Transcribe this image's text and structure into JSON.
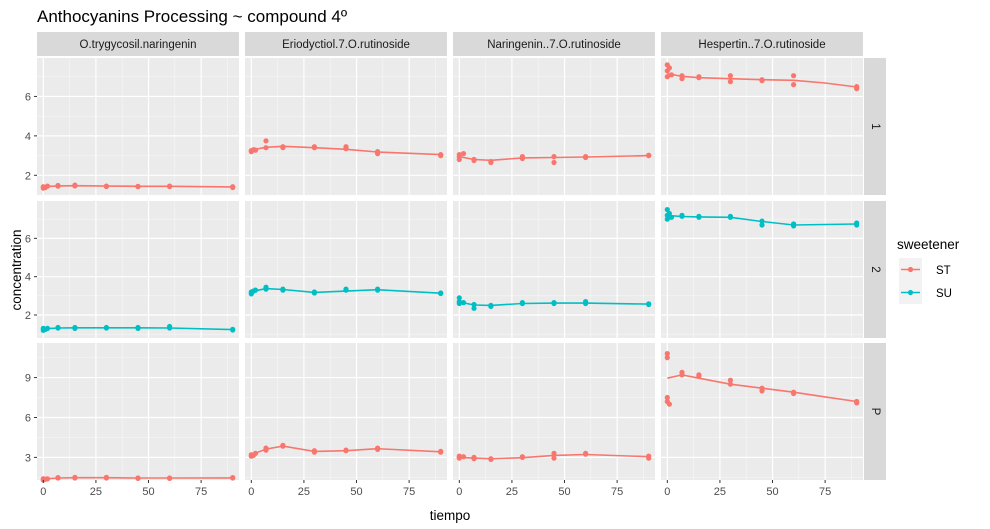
{
  "chart_data": {
    "type": "scatter",
    "title": "Anthocyanins Processing ~ compound 4º",
    "xlabel": "tiempo",
    "ylabel": "concentration",
    "xlim": [
      -3,
      93
    ],
    "x_ticks": [
      0,
      25,
      50,
      75
    ],
    "x_tick_labels": [
      "0",
      "25",
      "50",
      "75"
    ],
    "columns": [
      "O.trygycosil.naringenin",
      "Eriodyctiol.7.O.rutinoside",
      "Naringenin..7.O.rutinoside",
      "Hespertin..7.O.rutinoside"
    ],
    "rows": [
      {
        "label": "1",
        "ylim": [
          1.0,
          7.95
        ],
        "y_ticks": [
          2,
          4,
          6
        ],
        "y_tick_labels": [
          "2",
          "4",
          "6"
        ]
      },
      {
        "label": "2",
        "ylim": [
          0.8,
          7.95
        ],
        "y_ticks": [
          2,
          4,
          6
        ],
        "y_tick_labels": [
          "2",
          "4",
          "6"
        ]
      },
      {
        "label": "P",
        "ylim": [
          1.3,
          11.6
        ],
        "y_ticks": [
          3,
          6,
          9
        ],
        "y_tick_labels": [
          "3",
          "6",
          "9"
        ]
      }
    ],
    "legend": {
      "title": "sweetener",
      "position": "right",
      "items": [
        {
          "name": "ST",
          "color": "#F8766D"
        },
        {
          "name": "SU",
          "color": "#00BFC4"
        }
      ]
    },
    "panels": [
      {
        "row": 0,
        "col": 0,
        "sweetener": "ST",
        "points": [
          [
            0,
            1.35
          ],
          [
            0,
            1.42
          ],
          [
            1,
            1.38
          ],
          [
            2,
            1.45
          ],
          [
            7,
            1.45
          ],
          [
            7,
            1.48
          ],
          [
            15,
            1.5
          ],
          [
            15,
            1.46
          ],
          [
            30,
            1.45
          ],
          [
            30,
            1.43
          ],
          [
            45,
            1.44
          ],
          [
            45,
            1.42
          ],
          [
            60,
            1.45
          ],
          [
            60,
            1.43
          ],
          [
            90,
            1.42
          ],
          [
            90,
            1.38
          ]
        ],
        "line": [
          [
            0,
            1.42
          ],
          [
            7,
            1.46
          ],
          [
            15,
            1.47
          ],
          [
            30,
            1.45
          ],
          [
            45,
            1.44
          ],
          [
            60,
            1.44
          ],
          [
            90,
            1.41
          ]
        ]
      },
      {
        "row": 0,
        "col": 1,
        "sweetener": "ST",
        "points": [
          [
            0,
            3.2
          ],
          [
            0,
            3.25
          ],
          [
            1,
            3.3
          ],
          [
            2,
            3.28
          ],
          [
            7,
            3.75
          ],
          [
            7,
            3.4
          ],
          [
            15,
            3.45
          ],
          [
            15,
            3.4
          ],
          [
            30,
            3.4
          ],
          [
            30,
            3.45
          ],
          [
            45,
            3.35
          ],
          [
            45,
            3.45
          ],
          [
            60,
            3.2
          ],
          [
            60,
            3.1
          ],
          [
            90,
            3.05
          ],
          [
            90,
            3.0
          ]
        ],
        "line": [
          [
            0,
            3.28
          ],
          [
            7,
            3.42
          ],
          [
            15,
            3.47
          ],
          [
            30,
            3.4
          ],
          [
            45,
            3.32
          ],
          [
            60,
            3.18
          ],
          [
            90,
            3.05
          ]
        ]
      },
      {
        "row": 0,
        "col": 2,
        "sweetener": "ST",
        "points": [
          [
            0,
            3.05
          ],
          [
            0,
            2.95
          ],
          [
            0,
            2.8
          ],
          [
            2,
            3.1
          ],
          [
            7,
            2.75
          ],
          [
            7,
            2.8
          ],
          [
            15,
            2.65
          ],
          [
            15,
            2.7
          ],
          [
            30,
            2.95
          ],
          [
            30,
            2.85
          ],
          [
            45,
            2.95
          ],
          [
            45,
            2.65
          ],
          [
            60,
            2.9
          ],
          [
            60,
            2.95
          ],
          [
            90,
            3.0
          ],
          [
            90,
            3.02
          ]
        ],
        "line": [
          [
            0,
            2.95
          ],
          [
            7,
            2.8
          ],
          [
            15,
            2.76
          ],
          [
            30,
            2.88
          ],
          [
            45,
            2.9
          ],
          [
            60,
            2.93
          ],
          [
            90,
            3.0
          ]
        ]
      },
      {
        "row": 0,
        "col": 3,
        "sweetener": "ST",
        "points": [
          [
            0,
            7.6
          ],
          [
            0,
            7.3
          ],
          [
            0,
            7.0
          ],
          [
            1,
            7.45
          ],
          [
            2,
            7.1
          ],
          [
            7,
            7.05
          ],
          [
            7,
            6.9
          ],
          [
            15,
            6.95
          ],
          [
            15,
            7.0
          ],
          [
            30,
            6.75
          ],
          [
            30,
            7.05
          ],
          [
            45,
            6.8
          ],
          [
            45,
            6.85
          ],
          [
            60,
            7.05
          ],
          [
            60,
            6.6
          ],
          [
            90,
            6.5
          ],
          [
            90,
            6.4
          ],
          [
            90,
            6.45
          ]
        ],
        "line": [
          [
            0,
            7.15
          ],
          [
            7,
            7.02
          ],
          [
            15,
            6.95
          ],
          [
            30,
            6.9
          ],
          [
            45,
            6.85
          ],
          [
            60,
            6.82
          ],
          [
            75,
            6.68
          ],
          [
            90,
            6.48
          ]
        ]
      },
      {
        "row": 1,
        "col": 0,
        "sweetener": "SU",
        "points": [
          [
            0,
            1.2
          ],
          [
            0,
            1.3
          ],
          [
            1,
            1.25
          ],
          [
            2,
            1.3
          ],
          [
            7,
            1.35
          ],
          [
            7,
            1.32
          ],
          [
            15,
            1.3
          ],
          [
            15,
            1.35
          ],
          [
            30,
            1.35
          ],
          [
            30,
            1.32
          ],
          [
            45,
            1.35
          ],
          [
            45,
            1.3
          ],
          [
            60,
            1.4
          ],
          [
            60,
            1.32
          ],
          [
            90,
            1.25
          ],
          [
            90,
            1.22
          ]
        ],
        "line": [
          [
            0,
            1.28
          ],
          [
            7,
            1.32
          ],
          [
            15,
            1.33
          ],
          [
            30,
            1.33
          ],
          [
            45,
            1.33
          ],
          [
            60,
            1.32
          ],
          [
            90,
            1.24
          ]
        ]
      },
      {
        "row": 1,
        "col": 1,
        "sweetener": "SU",
        "points": [
          [
            0,
            3.1
          ],
          [
            0,
            3.2
          ],
          [
            1,
            3.25
          ],
          [
            2,
            3.3
          ],
          [
            7,
            3.45
          ],
          [
            7,
            3.35
          ],
          [
            15,
            3.3
          ],
          [
            15,
            3.35
          ],
          [
            30,
            3.15
          ],
          [
            30,
            3.2
          ],
          [
            45,
            3.3
          ],
          [
            45,
            3.35
          ],
          [
            60,
            3.35
          ],
          [
            60,
            3.3
          ],
          [
            90,
            3.15
          ],
          [
            90,
            3.12
          ]
        ],
        "line": [
          [
            0,
            3.22
          ],
          [
            7,
            3.38
          ],
          [
            15,
            3.33
          ],
          [
            30,
            3.18
          ],
          [
            45,
            3.25
          ],
          [
            60,
            3.32
          ],
          [
            90,
            3.14
          ]
        ]
      },
      {
        "row": 1,
        "col": 2,
        "sweetener": "SU",
        "points": [
          [
            0,
            2.9
          ],
          [
            0,
            2.7
          ],
          [
            0,
            2.6
          ],
          [
            2,
            2.65
          ],
          [
            7,
            2.35
          ],
          [
            7,
            2.55
          ],
          [
            15,
            2.5
          ],
          [
            15,
            2.45
          ],
          [
            30,
            2.65
          ],
          [
            30,
            2.6
          ],
          [
            45,
            2.65
          ],
          [
            45,
            2.6
          ],
          [
            60,
            2.7
          ],
          [
            60,
            2.6
          ],
          [
            90,
            2.55
          ],
          [
            90,
            2.58
          ]
        ],
        "line": [
          [
            0,
            2.68
          ],
          [
            7,
            2.52
          ],
          [
            15,
            2.5
          ],
          [
            30,
            2.6
          ],
          [
            45,
            2.62
          ],
          [
            60,
            2.62
          ],
          [
            90,
            2.57
          ]
        ]
      },
      {
        "row": 1,
        "col": 3,
        "sweetener": "SU",
        "points": [
          [
            0,
            7.5
          ],
          [
            0,
            7.2
          ],
          [
            0,
            7.0
          ],
          [
            1,
            7.3
          ],
          [
            2,
            7.1
          ],
          [
            7,
            7.15
          ],
          [
            7,
            7.2
          ],
          [
            15,
            7.1
          ],
          [
            15,
            7.15
          ],
          [
            30,
            7.1
          ],
          [
            30,
            7.15
          ],
          [
            45,
            6.9
          ],
          [
            45,
            6.7
          ],
          [
            60,
            6.65
          ],
          [
            60,
            6.75
          ],
          [
            90,
            6.8
          ],
          [
            90,
            6.7
          ]
        ],
        "line": [
          [
            0,
            7.2
          ],
          [
            7,
            7.14
          ],
          [
            15,
            7.12
          ],
          [
            30,
            7.1
          ],
          [
            45,
            6.88
          ],
          [
            60,
            6.7
          ],
          [
            90,
            6.75
          ]
        ]
      },
      {
        "row": 2,
        "col": 0,
        "sweetener": "ST",
        "points": [
          [
            0,
            1.4
          ],
          [
            0,
            1.3
          ],
          [
            1,
            1.35
          ],
          [
            2,
            1.38
          ],
          [
            7,
            1.45
          ],
          [
            7,
            1.48
          ],
          [
            15,
            1.45
          ],
          [
            15,
            1.5
          ],
          [
            30,
            1.45
          ],
          [
            30,
            1.5
          ],
          [
            45,
            1.45
          ],
          [
            45,
            1.42
          ],
          [
            60,
            1.45
          ],
          [
            60,
            1.42
          ],
          [
            90,
            1.45
          ],
          [
            90,
            1.48
          ]
        ],
        "line": [
          [
            0,
            1.38
          ],
          [
            7,
            1.45
          ],
          [
            15,
            1.47
          ],
          [
            30,
            1.47
          ],
          [
            45,
            1.45
          ],
          [
            60,
            1.45
          ],
          [
            90,
            1.46
          ]
        ]
      },
      {
        "row": 2,
        "col": 1,
        "sweetener": "ST",
        "points": [
          [
            0,
            3.1
          ],
          [
            0,
            3.2
          ],
          [
            1,
            3.15
          ],
          [
            2,
            3.3
          ],
          [
            7,
            3.55
          ],
          [
            7,
            3.7
          ],
          [
            15,
            3.85
          ],
          [
            15,
            3.9
          ],
          [
            30,
            3.5
          ],
          [
            30,
            3.4
          ],
          [
            45,
            3.5
          ],
          [
            45,
            3.55
          ],
          [
            60,
            3.6
          ],
          [
            60,
            3.7
          ],
          [
            90,
            3.4
          ],
          [
            90,
            3.45
          ]
        ],
        "line": [
          [
            0,
            3.2
          ],
          [
            7,
            3.62
          ],
          [
            15,
            3.85
          ],
          [
            30,
            3.45
          ],
          [
            45,
            3.5
          ],
          [
            60,
            3.65
          ],
          [
            90,
            3.42
          ]
        ]
      },
      {
        "row": 2,
        "col": 2,
        "sweetener": "ST",
        "points": [
          [
            0,
            3.1
          ],
          [
            0,
            2.95
          ],
          [
            0,
            3.0
          ],
          [
            2,
            3.05
          ],
          [
            7,
            2.9
          ],
          [
            7,
            3.0
          ],
          [
            15,
            2.85
          ],
          [
            15,
            2.9
          ],
          [
            30,
            3.05
          ],
          [
            30,
            3.0
          ],
          [
            45,
            3.3
          ],
          [
            45,
            2.95
          ],
          [
            60,
            3.25
          ],
          [
            60,
            3.3
          ],
          [
            90,
            3.1
          ],
          [
            90,
            2.95
          ]
        ],
        "line": [
          [
            0,
            3.0
          ],
          [
            7,
            2.95
          ],
          [
            15,
            2.9
          ],
          [
            30,
            2.98
          ],
          [
            45,
            3.15
          ],
          [
            60,
            3.22
          ],
          [
            90,
            3.05
          ]
        ]
      },
      {
        "row": 2,
        "col": 3,
        "sweetener": "ST",
        "points": [
          [
            0,
            10.8
          ],
          [
            0,
            10.5
          ],
          [
            0,
            7.5
          ],
          [
            0,
            7.2
          ],
          [
            1,
            7.0
          ],
          [
            7,
            9.4
          ],
          [
            7,
            9.2
          ],
          [
            15,
            9.1
          ],
          [
            15,
            9.2
          ],
          [
            30,
            8.8
          ],
          [
            30,
            8.5
          ],
          [
            45,
            8.2
          ],
          [
            45,
            8.0
          ],
          [
            60,
            7.8
          ],
          [
            60,
            7.9
          ],
          [
            90,
            7.2
          ],
          [
            90,
            7.1
          ]
        ],
        "line": [
          [
            0,
            8.95
          ],
          [
            7,
            9.2
          ],
          [
            15,
            8.95
          ],
          [
            30,
            8.5
          ],
          [
            45,
            8.2
          ],
          [
            60,
            7.9
          ],
          [
            75,
            7.55
          ],
          [
            90,
            7.2
          ]
        ]
      }
    ]
  }
}
